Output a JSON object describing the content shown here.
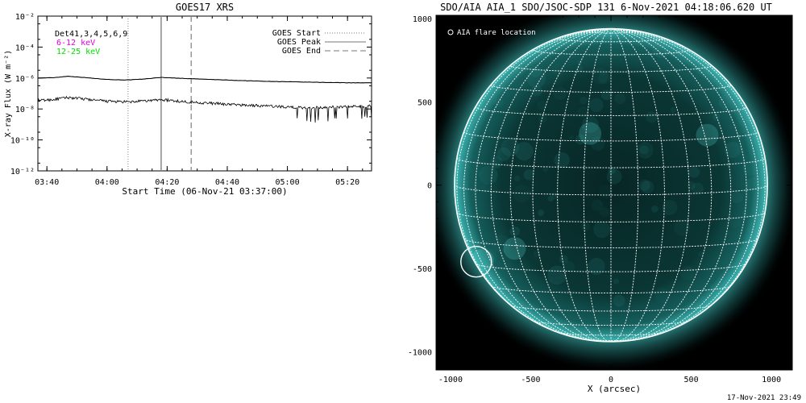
{
  "footer_timestamp": "17-Nov-2021 23:49",
  "chart_data": [
    {
      "type": "line",
      "title": "GOES17 XRS",
      "xlabel": "Start Time (06-Nov-21 03:37:00)",
      "ylabel": "X-ray Flux (W m⁻²)",
      "y_scale": "log",
      "ylim": [
        "1e-12",
        "1e-2"
      ],
      "x_ticks": [
        "03:40",
        "04:00",
        "04:20",
        "04:40",
        "05:00",
        "05:20"
      ],
      "y_ticks": [
        "10⁻¹²",
        "10⁻¹⁰",
        "10⁻⁸",
        "10⁻⁶",
        "10⁻⁴",
        "10⁻²"
      ],
      "detector_label": "Det41,3,4,5,6,9",
      "channel_labels": [
        {
          "text": "6-12 keV",
          "color": "#e000e0"
        },
        {
          "text": "12-25 keV",
          "color": "#00e000"
        }
      ],
      "legend": [
        "GOES Start",
        "GOES Peak",
        "GOES End"
      ],
      "legend_placement": "top-right",
      "event_times": {
        "start": "04:07",
        "peak": "04:18",
        "end": "04:28"
      },
      "series": [
        {
          "x": [
            "03:37",
            "03:42",
            "03:47",
            "03:52",
            "03:57",
            "04:02",
            "04:07",
            "04:12",
            "04:18",
            "04:25",
            "04:35",
            "04:45",
            "04:55",
            "05:05",
            "05:15",
            "05:28"
          ],
          "y": [
            1e-06,
            1.05e-06,
            1.3e-06,
            1.1e-06,
            9e-07,
            7.8e-07,
            7.5e-07,
            8.5e-07,
            1.1e-06,
            9.5e-07,
            8e-07,
            6.8e-07,
            6e-07,
            5.5e-07,
            5.1e-07,
            4.8e-07
          ],
          "color": "#000000"
        },
        {
          "x": [
            "03:37",
            "03:42",
            "03:47",
            "03:52",
            "03:57",
            "04:02",
            "04:07",
            "04:12",
            "04:18",
            "04:25",
            "04:35",
            "04:45",
            "04:55",
            "05:05",
            "05:15",
            "05:28"
          ],
          "y": [
            3.5e-08,
            4e-08,
            5.5e-08,
            4.5e-08,
            3.5e-08,
            3e-08,
            2.8e-08,
            3.2e-08,
            4e-08,
            3e-08,
            2.3e-08,
            1.8e-08,
            1.5e-08,
            1.2e-08,
            1.3e-08,
            1.6e-08
          ],
          "color": "#000000"
        }
      ]
    },
    {
      "type": "scatter",
      "title": "SDO/AIA AIA_1 SDO/JSOC-SDP 131  6-Nov-2021 04:18:06.620 UT",
      "xlabel": "X (arcsec)",
      "ylabel": "",
      "xlim": [
        -1090,
        1130
      ],
      "ylim": [
        -1110,
        1020
      ],
      "x_ticks": [
        -1000,
        -500,
        0,
        500,
        1000
      ],
      "y_ticks": [
        -1000,
        -500,
        0,
        500,
        1000
      ],
      "solar_radius_arcsec": 975,
      "grid_spacing_deg": 10,
      "legend": [
        "AIA flare location"
      ],
      "legend_placement": "top-left",
      "flare_location": {
        "x": -840,
        "y": -460
      },
      "disk_color": "#0b4a48",
      "limb_color": "#6ff2f0",
      "grid_color": "#ffffff"
    }
  ]
}
